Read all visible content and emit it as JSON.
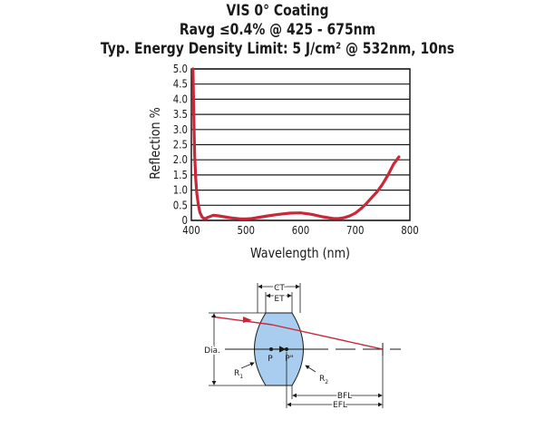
{
  "titles": {
    "line1": "VIS 0° Coating",
    "line2": "Ravg ≤0.4% @ 425 - 675nm",
    "line3": "Typ. Energy Density Limit: 5 J/cm² @ 532nm, 10ns"
  },
  "chart_data": {
    "type": "line",
    "xlabel": "Wavelength (nm)",
    "ylabel": "Reflection %",
    "xlim": [
      400,
      800
    ],
    "ylim": [
      0,
      5.0
    ],
    "xticks": [
      "400",
      "500",
      "600",
      "700",
      "800"
    ],
    "yticks": [
      "0",
      "0.5",
      "1.0",
      "1.5",
      "2.0",
      "2.5",
      "3.0",
      "3.5",
      "4.0",
      "4.5",
      "5.0"
    ],
    "grid": "horizontal",
    "line_color": "#c8283a",
    "series": [
      {
        "x": [
          403,
          404,
          405,
          406,
          408,
          410,
          413,
          416,
          420,
          425,
          430,
          440,
          450,
          460,
          470,
          480,
          490,
          500,
          510,
          520,
          540,
          560,
          580,
          600,
          620,
          640,
          660,
          670,
          680,
          690,
          700,
          710,
          720,
          730,
          740,
          750,
          760,
          770,
          780
        ],
        "y": [
          5.0,
          4.0,
          3.0,
          2.2,
          1.4,
          0.9,
          0.5,
          0.25,
          0.1,
          0.05,
          0.1,
          0.17,
          0.15,
          0.12,
          0.09,
          0.07,
          0.05,
          0.05,
          0.06,
          0.09,
          0.15,
          0.2,
          0.24,
          0.25,
          0.2,
          0.12,
          0.06,
          0.06,
          0.09,
          0.15,
          0.24,
          0.38,
          0.55,
          0.75,
          0.95,
          1.2,
          1.5,
          1.85,
          2.1
        ]
      }
    ]
  },
  "lens_diagram": {
    "ct_label": "CT",
    "et_label": "ET",
    "dia_label": "Dia.",
    "p_label": "P",
    "p2_label": "P\"",
    "r1_label": "R",
    "r1_sub": "1",
    "r2_label": "R",
    "r2_sub": "2",
    "bfl_label": "BFL",
    "efl_label": "EFL",
    "lens_fill": "#a9cdee",
    "ray_color": "#c8283a"
  }
}
